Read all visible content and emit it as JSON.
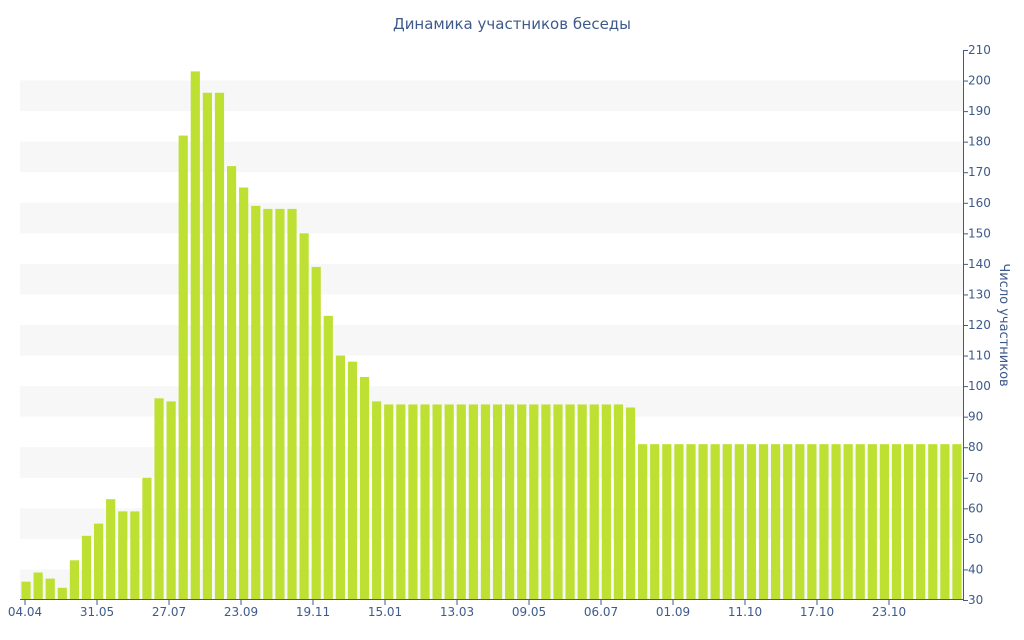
{
  "chart_data": {
    "type": "bar",
    "title": "Динамика участников беседы",
    "ylabel": "Число участников",
    "xlabel": "",
    "ylim": [
      30,
      210
    ],
    "y_ticks": [
      30,
      40,
      50,
      60,
      70,
      80,
      90,
      100,
      110,
      120,
      130,
      140,
      150,
      160,
      170,
      180,
      190,
      200,
      210
    ],
    "x_tick_labels": [
      "04.04",
      "31.05",
      "27.07",
      "23.09",
      "19.11",
      "15.01",
      "13.03",
      "09.05",
      "06.07",
      "01.09",
      "11.10",
      "17.10",
      "23.10"
    ],
    "y_axis_position": "right",
    "grid": "horizontal bands",
    "bar_color": "#bde032",
    "band_color": "#f7f7f7",
    "axis_color": "#3e5a8a",
    "values": [
      36,
      39,
      37,
      34,
      43,
      51,
      55,
      63,
      59,
      59,
      70,
      96,
      95,
      182,
      203,
      196,
      196,
      172,
      165,
      159,
      158,
      158,
      158,
      150,
      139,
      123,
      110,
      108,
      103,
      95,
      94,
      94,
      94,
      94,
      94,
      94,
      94,
      94,
      94,
      94,
      94,
      94,
      94,
      94,
      94,
      94,
      94,
      94,
      94,
      94,
      93,
      81,
      81,
      81,
      81,
      81,
      81,
      81,
      81,
      81,
      81,
      81,
      81,
      81,
      81,
      81,
      81,
      81,
      81,
      81,
      81,
      81,
      81,
      81,
      81,
      81,
      81,
      81
    ]
  }
}
